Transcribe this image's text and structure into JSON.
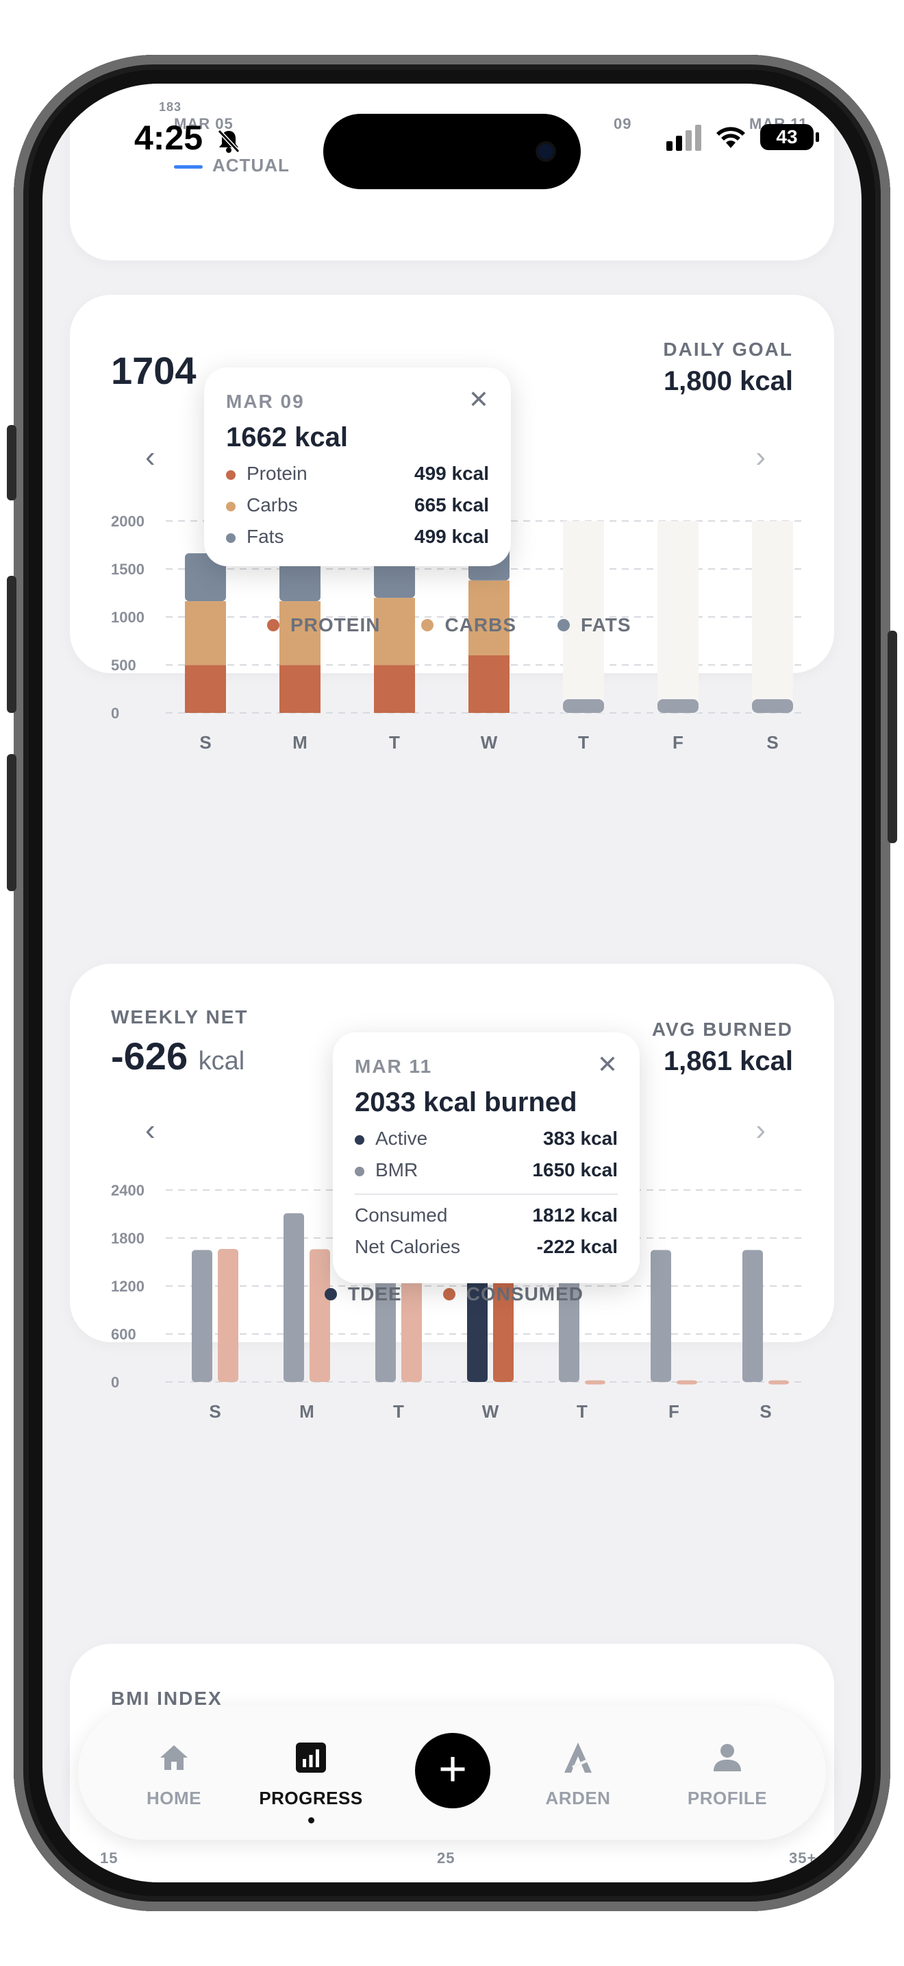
{
  "status_bar": {
    "time": "4:25",
    "battery": "43"
  },
  "top_card": {
    "start_date": "MAR 05",
    "mid_date": "09",
    "end_date": "MAR 11",
    "legend_actual": "ACTUAL",
    "partial_tick": "183"
  },
  "macros": {
    "value": "1704",
    "daily_goal_label": "DAILY GOAL",
    "daily_goal_value": "1,800 kcal",
    "legend": {
      "protein": "PROTEIN",
      "carbs": "CARBS",
      "fats": "FATS"
    },
    "tooltip": {
      "date": "MAR 09",
      "title": "1662 kcal",
      "rows": [
        {
          "label": "Protein",
          "value": "499 kcal"
        },
        {
          "label": "Carbs",
          "value": "665 kcal"
        },
        {
          "label": "Fats",
          "value": "499 kcal"
        }
      ]
    }
  },
  "net": {
    "label": "WEEKLY NET",
    "value": "-626",
    "unit": "kcal",
    "avg_label": "AVG BURNED",
    "avg_value": "1,861 kcal",
    "legend": {
      "tdee": "TDEE",
      "consumed": "CONSUMED"
    },
    "tooltip": {
      "date": "MAR 11",
      "title": "2033 kcal burned",
      "rows": [
        {
          "label": "Active",
          "value": "383 kcal"
        },
        {
          "label": "BMR",
          "value": "1650 kcal"
        }
      ],
      "rows2": [
        {
          "label": "Consumed",
          "value": "1812 kcal"
        },
        {
          "label": "Net Calories",
          "value": "-222 kcal"
        }
      ]
    }
  },
  "bmi": {
    "label": "BMI INDEX",
    "ticks": [
      "15",
      "25",
      "35+"
    ]
  },
  "tabs": {
    "home": "HOME",
    "progress": "PROGRESS",
    "arden": "ARDEN",
    "profile": "PROFILE"
  },
  "colors": {
    "protein": "#c56a4a",
    "carbs": "#d6a472",
    "fats": "#7c8a9c",
    "tdee": "#9aa1ad",
    "tdee_active": "#2d3a52",
    "consumed": "#e3b2a2",
    "consumed_active": "#c56a4a",
    "empty": "#f7f5f2"
  },
  "chart_data": [
    {
      "type": "bar",
      "stacked": true,
      "categories": [
        "S",
        "M",
        "T",
        "W",
        "T",
        "F",
        "S"
      ],
      "series": [
        {
          "name": "PROTEIN",
          "values": [
            499,
            499,
            499,
            600,
            0,
            0,
            0
          ]
        },
        {
          "name": "CARBS",
          "values": [
            665,
            665,
            700,
            780,
            0,
            0,
            0
          ]
        },
        {
          "name": "FATS",
          "values": [
            499,
            499,
            499,
            370,
            0,
            0,
            0
          ]
        }
      ],
      "yticks": [
        "0",
        "500",
        "1000",
        "1500",
        "2000"
      ],
      "ylim": [
        0,
        2000
      ],
      "grid": true,
      "legend": "bottom"
    },
    {
      "type": "bar",
      "categories": [
        "S",
        "M",
        "T",
        "W",
        "T",
        "F",
        "S"
      ],
      "series": [
        {
          "name": "TDEE",
          "values": [
            1650,
            2110,
            1650,
            2033,
            1650,
            1650,
            1650
          ]
        },
        {
          "name": "CONSUMED",
          "values": [
            1663,
            1660,
            1700,
            1812,
            20,
            20,
            20
          ]
        }
      ],
      "yticks": [
        "0",
        "600",
        "1200",
        "1800",
        "2400"
      ],
      "ylim": [
        0,
        2400
      ],
      "grid": true,
      "legend": "bottom"
    }
  ]
}
